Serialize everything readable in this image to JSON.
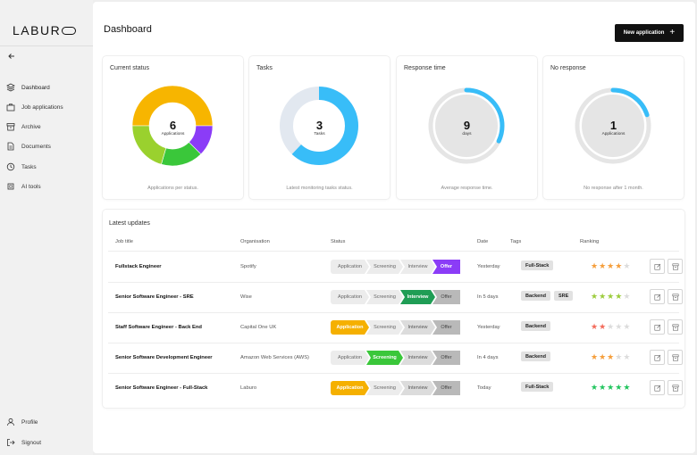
{
  "brand": {
    "logo_text": "LABUR"
  },
  "sidebar": {
    "back_icon": "arrow-left-icon",
    "items": [
      {
        "label": "Dashboard",
        "icon": "layers-icon",
        "active": true
      },
      {
        "label": "Job applications",
        "icon": "briefcase-icon"
      },
      {
        "label": "Archive",
        "icon": "archive-icon"
      },
      {
        "label": "Documents",
        "icon": "document-icon"
      },
      {
        "label": "Tasks",
        "icon": "clock-icon"
      },
      {
        "label": "AI tools",
        "icon": "chip-icon"
      }
    ],
    "bottom_items": [
      {
        "label": "Profile",
        "icon": "user-icon"
      },
      {
        "label": "Signout",
        "icon": "signout-icon"
      }
    ]
  },
  "header": {
    "title": "Dashboard",
    "new_button_label": "New application",
    "new_button_icon": "plus-icon"
  },
  "cards": {
    "current_status": {
      "title": "Current status",
      "value": "6",
      "unit": "Applications",
      "footer": "Applications per status.",
      "segments": [
        {
          "color": "#f7b500",
          "fraction": 0.5
        },
        {
          "color": "#8b3cf7",
          "fraction": 0.125
        },
        {
          "color": "#3ac73a",
          "fraction": 0.17
        },
        {
          "color": "#9ad12e",
          "fraction": 0.205
        }
      ]
    },
    "tasks": {
      "title": "Tasks",
      "value": "3",
      "unit": "Tasks",
      "footer": "Latest monitoring tasks status.",
      "fill_fraction": 0.62,
      "fill_color": "#38bdf8",
      "track_color": "#e2e8f0"
    },
    "response_time": {
      "title": "Response time",
      "value": "9",
      "unit": "days",
      "footer": "Average response time.",
      "fill_fraction": 0.32,
      "fill_color": "#38bdf8",
      "track_color": "#e5e5e5"
    },
    "no_response": {
      "title": "No response",
      "value": "1",
      "unit": "Applications",
      "footer": "No response after 1 month.",
      "fill_fraction": 0.2,
      "fill_color": "#38bdf8",
      "track_color": "#e5e5e5"
    }
  },
  "updates": {
    "title": "Latest updates",
    "columns": [
      "Job title",
      "Organisation",
      "Status",
      "Date",
      "Tags",
      "Ranking"
    ],
    "stages": [
      "Application",
      "Screening",
      "Interview",
      "Offer"
    ],
    "rows": [
      {
        "job": "Fullstack Engineer",
        "org": "Spotify",
        "stage": 3,
        "stage_color": "purple",
        "date": "Yesterday",
        "tags": [
          "Full-Stack"
        ],
        "rating": 4,
        "star_color": "#f59e3b"
      },
      {
        "job": "Senior Software Engineer - SRE",
        "org": "Wise",
        "stage": 2,
        "stage_color": "green",
        "date": "In 5 days",
        "tags": [
          "Backend",
          "SRE"
        ],
        "rating": 4,
        "star_color": "#9ccc3c"
      },
      {
        "job": "Staff Software Engineer - Back End",
        "org": "Capital One UK",
        "stage": 0,
        "stage_color": "orange",
        "date": "Yesterday",
        "tags": [
          "Backend"
        ],
        "rating": 2,
        "star_color": "#f36b5b"
      },
      {
        "job": "Senior Software Development Engineer",
        "org": "Amazon Web Services (AWS)",
        "stage": 1,
        "stage_color": "lime",
        "date": "In 4 days",
        "tags": [
          "Backend"
        ],
        "rating": 3,
        "star_color": "#f59e3b"
      },
      {
        "job": "Senior Software Engineer - Full-Stack",
        "org": "Laburo",
        "stage": 0,
        "stage_color": "orange",
        "date": "Today",
        "tags": [
          "Full-Stack"
        ],
        "rating": 5,
        "star_color": "#22c55e"
      }
    ],
    "row_actions": [
      "edit-icon",
      "archive-icon"
    ]
  }
}
